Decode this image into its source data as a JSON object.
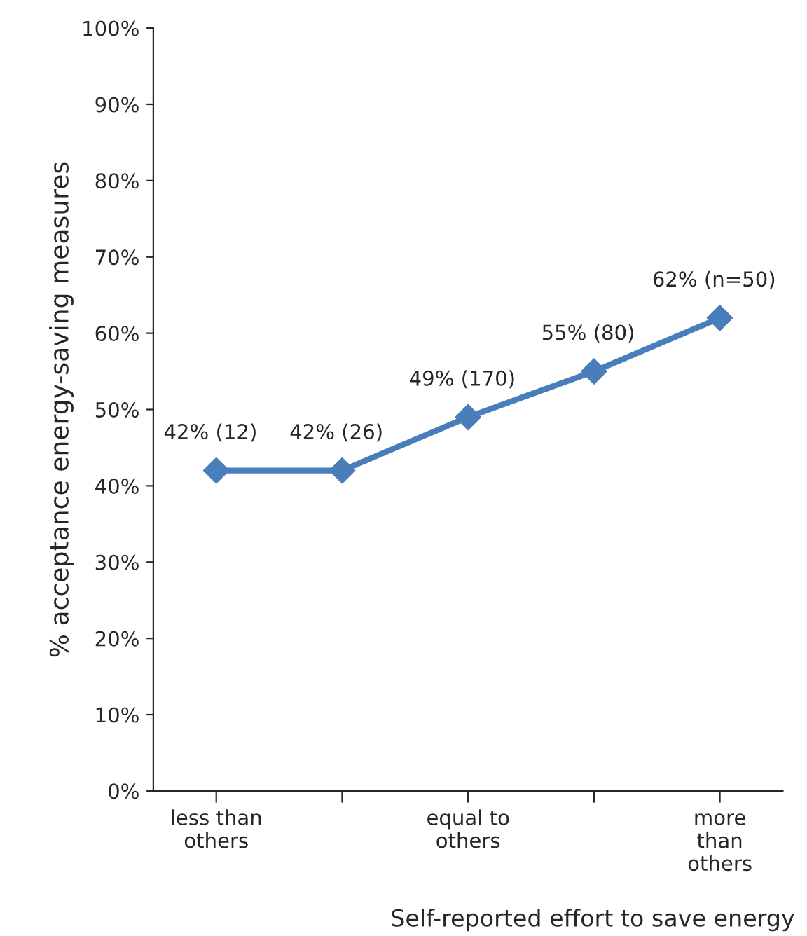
{
  "chart_data": {
    "type": "line",
    "xlabel": "Self-reported effort to save energy",
    "ylabel": "% acceptance energy-saving measures",
    "categories": [
      "less than\nothers",
      null,
      "equal to\nothers",
      null,
      "more\nthan\nothers"
    ],
    "series": [
      {
        "color": "#4a7ebb",
        "values": [
          42,
          42,
          49,
          55,
          62
        ],
        "value_labels": [
          "42% (12)",
          "42% (26)",
          "49% (170)",
          "55% (80)",
          "62% (n=50)"
        ]
      }
    ],
    "ylim": [
      0,
      100
    ],
    "yticks": [
      {
        "value": 0,
        "label": "0%"
      },
      {
        "value": 10,
        "label": "10%"
      },
      {
        "value": 20,
        "label": "20%"
      },
      {
        "value": 30,
        "label": "30%"
      },
      {
        "value": 40,
        "label": "40%"
      },
      {
        "value": 50,
        "label": "50%"
      },
      {
        "value": 60,
        "label": "60%"
      },
      {
        "value": 70,
        "label": "70%"
      },
      {
        "value": 80,
        "label": "80%"
      },
      {
        "value": 90,
        "label": "90%"
      },
      {
        "value": 100,
        "label": "100%"
      }
    ],
    "marker": "diamond",
    "line_style": "solid",
    "grid": false,
    "legend": false
  }
}
